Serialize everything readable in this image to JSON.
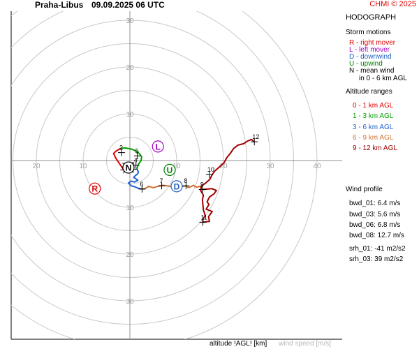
{
  "header": {
    "station": "Praha-Libus",
    "datetime": "09.09.2025 06 UTC",
    "copyright": "CHMI © 2025"
  },
  "panel": {
    "title": "HODOGRAPH",
    "storm_motions_title": "Storm motions",
    "storm_motions": [
      {
        "text": "R - right mover",
        "color": "#e00000"
      },
      {
        "text": "L - left mover",
        "color": "#a000c0"
      },
      {
        "text": "D - downwind",
        "color": "#2060c0"
      },
      {
        "text": "U - upwind",
        "color": "#008000"
      },
      {
        "text": "N - mean wind",
        "color": "#000000"
      },
      {
        "text": "in 0 - 6 km AGL",
        "color": "#000000"
      }
    ],
    "altitude_ranges_title": "Altitude ranges",
    "altitude_ranges": [
      {
        "text": "0 - 1 km AGL",
        "color": "#e00000"
      },
      {
        "text": "1 - 3 km AGL",
        "color": "#00a000"
      },
      {
        "text": "3 - 6 km AGL",
        "color": "#2060d0"
      },
      {
        "text": "6 - 9 km AGL",
        "color": "#d07030"
      },
      {
        "text": "9 - 12 km AGL",
        "color": "#a00000"
      }
    ],
    "wind_profile_title": "Wind profile",
    "wind_profile": [
      "bwd_01: 6.4 m/s",
      "bwd_03: 5.6 m/s",
      "bwd_06: 6.8 m/s",
      "bwd_08: 12.7 m/s",
      "srh_01: -41 m2/s2",
      "srh_03: 39 m2/s2"
    ]
  },
  "footer": {
    "altitude_label": "altitude !AGL! [km]",
    "speed_label": "wind speed [m/s]"
  },
  "colors": {
    "range_rings": "#c8c8c8",
    "axes": "#909090",
    "ticks": "#a0a0a0"
  },
  "chart_data": {
    "type": "hodograph",
    "xlabel": "",
    "ylabel": "",
    "speed_units": "m/s",
    "ring_speeds": [
      5,
      10,
      15,
      20,
      25,
      30,
      35,
      40
    ],
    "tick_labels": {
      "left": [
        "20",
        "10"
      ],
      "right": [
        "10",
        "20",
        "30",
        "40"
      ],
      "up": [
        "10",
        "20",
        "30"
      ],
      "down": [
        "10",
        "20",
        "30"
      ]
    },
    "segments": [
      {
        "name": "0 - 1 km AGL",
        "color": "#e00000",
        "points": [
          [
            -1.3,
            -2.0
          ],
          [
            -2.0,
            -1.0
          ],
          [
            -3.0,
            0.5
          ],
          [
            -3.5,
            1.5
          ],
          [
            -3.0,
            2.0
          ],
          [
            -2.0,
            2.6
          ]
        ]
      },
      {
        "name": "1 - 3 km AGL",
        "color": "#00a000",
        "points": [
          [
            -2.0,
            2.6
          ],
          [
            -1.0,
            2.7
          ],
          [
            0.5,
            2.4
          ],
          [
            1.3,
            2.0
          ],
          [
            2.0,
            1.5
          ],
          [
            2.5,
            0.8
          ],
          [
            2.4,
            0.0
          ],
          [
            1.8,
            -0.8
          ],
          [
            1.5,
            -1.8
          ]
        ]
      },
      {
        "name": "3 - 6 km AGL",
        "color": "#2060d0",
        "points": [
          [
            1.5,
            -1.8
          ],
          [
            1.8,
            -2.4
          ],
          [
            1.7,
            -2.8
          ],
          [
            1.2,
            -3.2
          ],
          [
            0.8,
            -3.6
          ],
          [
            1.7,
            -4.2
          ],
          [
            1.0,
            -4.6
          ],
          [
            0.3,
            -4.4
          ],
          [
            -0.3,
            -4.8
          ],
          [
            0.3,
            -5.4
          ],
          [
            1.0,
            -5.6
          ],
          [
            1.7,
            -5.9
          ],
          [
            2.6,
            -6.1
          ]
        ]
      },
      {
        "name": "6 - 9 km AGL",
        "color": "#d07030",
        "points": [
          [
            2.6,
            -6.1
          ],
          [
            3.3,
            -6.0
          ],
          [
            4.0,
            -5.5
          ],
          [
            5.0,
            -5.8
          ],
          [
            6.0,
            -5.5
          ],
          [
            7.0,
            -5.3
          ],
          [
            8.0,
            -5.4
          ],
          [
            9.0,
            -5.6
          ],
          [
            10.0,
            -5.3
          ],
          [
            11.0,
            -5.6
          ],
          [
            12.0,
            -5.4
          ],
          [
            12.6,
            -5.8
          ],
          [
            13.0,
            -5.6
          ],
          [
            13.6,
            -5.3
          ],
          [
            14.2,
            -5.7
          ],
          [
            15.0,
            -5.5
          ],
          [
            15.5,
            -6.2
          ]
        ]
      },
      {
        "name": "9 - 12 km AGL",
        "color": "#a00000",
        "points": [
          [
            15.5,
            -6.2
          ],
          [
            17.5,
            -6.0
          ],
          [
            18.5,
            -6.4
          ],
          [
            18.0,
            -7.1
          ],
          [
            17.0,
            -7.8
          ],
          [
            16.5,
            -8.8
          ],
          [
            16.9,
            -9.4
          ],
          [
            16.3,
            -10.4
          ],
          [
            17.6,
            -10.9
          ],
          [
            16.8,
            -12.0
          ],
          [
            17.0,
            -13.0
          ],
          [
            15.6,
            -13.2
          ],
          [
            15.6,
            -12.5
          ],
          [
            16.1,
            -11.8
          ],
          [
            15.7,
            -10.5
          ],
          [
            15.5,
            -8.4
          ],
          [
            15.7,
            -7.4
          ],
          [
            15.1,
            -6.4
          ],
          [
            15.3,
            -5.4
          ],
          [
            16.1,
            -4.9
          ],
          [
            17.1,
            -4.0
          ],
          [
            17.6,
            -3.0
          ],
          [
            18.2,
            -2.2
          ],
          [
            19.2,
            -1.3
          ],
          [
            20.1,
            -0.5
          ],
          [
            20.7,
            0.6
          ],
          [
            21.5,
            1.6
          ],
          [
            22.2,
            2.6
          ],
          [
            23.1,
            3.3
          ],
          [
            24.3,
            3.6
          ],
          [
            25.2,
            4.2
          ],
          [
            26.0,
            4.5
          ],
          [
            26.6,
            4.0
          ]
        ]
      }
    ],
    "height_markers": [
      {
        "label": "1",
        "u": -1.3,
        "v": -2.0
      },
      {
        "label": "2",
        "u": -1.8,
        "v": 1.7
      },
      {
        "label": "3",
        "u": 0.7,
        "v": -1.9
      },
      {
        "label": "4",
        "u": 1.3,
        "v": -1.0
      },
      {
        "label": "5",
        "u": 1.6,
        "v": 1.0
      },
      {
        "label": "6",
        "u": 2.6,
        "v": -6.1
      },
      {
        "label": "7",
        "u": 6.8,
        "v": -5.4
      },
      {
        "label": "8",
        "u": 12.0,
        "v": -5.4
      },
      {
        "label": "9",
        "u": 15.5,
        "v": -6.2
      },
      {
        "label": "10",
        "u": 17.0,
        "v": -3.0
      },
      {
        "label": "11",
        "u": 15.6,
        "v": -13.2
      },
      {
        "label": "12",
        "u": 26.6,
        "v": 4.0
      }
    ],
    "storm_motions": [
      {
        "label": "R",
        "u": -7.5,
        "v": -6.0,
        "color": "#e00000"
      },
      {
        "label": "L",
        "u": 6.0,
        "v": 3.0,
        "color": "#a000c0"
      },
      {
        "label": "D",
        "u": 10.0,
        "v": -5.5,
        "color": "#2060c0"
      },
      {
        "label": "U",
        "u": 8.5,
        "v": -2.0,
        "color": "#008000"
      },
      {
        "label": "N",
        "u": -0.3,
        "v": -1.5,
        "color": "#000000"
      }
    ]
  }
}
